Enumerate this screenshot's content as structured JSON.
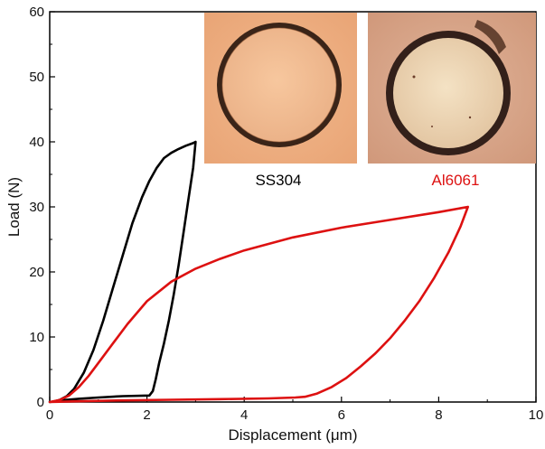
{
  "chart_data": {
    "type": "line",
    "xlabel": "Displacement (μm)",
    "ylabel": "Load (N)",
    "xlim": [
      0,
      10
    ],
    "ylim": [
      0,
      60
    ],
    "xticks": [
      "0",
      "2",
      "4",
      "6",
      "8",
      "10"
    ],
    "yticks": [
      "0",
      "10",
      "20",
      "30",
      "40",
      "50",
      "60"
    ],
    "grid": false,
    "series": [
      {
        "name": "SS304",
        "color": "#000000",
        "x": [
          0.0,
          0.1,
          0.2,
          0.35,
          0.5,
          0.7,
          0.9,
          1.1,
          1.3,
          1.5,
          1.7,
          1.9,
          2.05,
          2.2,
          2.35,
          2.5,
          2.65,
          2.8,
          2.95,
          3.0,
          2.95,
          2.85,
          2.75,
          2.65,
          2.55,
          2.45,
          2.35,
          2.25,
          2.18,
          2.12,
          2.05,
          1.5,
          1.0,
          0.6,
          0.3,
          0.0
        ],
        "y": [
          0.0,
          0.1,
          0.3,
          0.9,
          2.0,
          4.5,
          8.0,
          12.5,
          17.5,
          22.5,
          27.5,
          31.5,
          34.0,
          36.0,
          37.5,
          38.3,
          38.9,
          39.4,
          39.8,
          40.0,
          36.0,
          31.0,
          26.0,
          21.0,
          16.5,
          12.5,
          9.0,
          6.0,
          3.5,
          1.7,
          1.0,
          0.9,
          0.7,
          0.5,
          0.3,
          0.0
        ]
      },
      {
        "name": "Al6061",
        "color": "#dd1111",
        "x": [
          0.0,
          0.2,
          0.4,
          0.6,
          0.8,
          1.0,
          1.3,
          1.6,
          2.0,
          2.5,
          3.0,
          3.5,
          4.0,
          5.0,
          6.0,
          7.0,
          8.0,
          8.6,
          8.45,
          8.2,
          7.9,
          7.6,
          7.3,
          7.0,
          6.7,
          6.4,
          6.1,
          5.8,
          5.5,
          5.25,
          5.05,
          4.5,
          3.5,
          2.5,
          1.5,
          0.8,
          0.3,
          0.0
        ],
        "y": [
          0.0,
          0.3,
          1.0,
          2.3,
          4.0,
          6.0,
          9.0,
          12.0,
          15.5,
          18.5,
          20.5,
          22.0,
          23.3,
          25.3,
          26.8,
          28.0,
          29.2,
          30.0,
          27.0,
          23.0,
          19.0,
          15.5,
          12.5,
          9.8,
          7.5,
          5.5,
          3.7,
          2.3,
          1.3,
          0.8,
          0.7,
          0.55,
          0.45,
          0.35,
          0.25,
          0.15,
          0.05,
          0.0
        ]
      }
    ],
    "insets": [
      {
        "caption": "SS304",
        "caption_color": "#000000",
        "kind": "micrograph-indent"
      },
      {
        "caption": "Al6061",
        "caption_color": "#dd1111",
        "kind": "micrograph-indent"
      }
    ]
  }
}
